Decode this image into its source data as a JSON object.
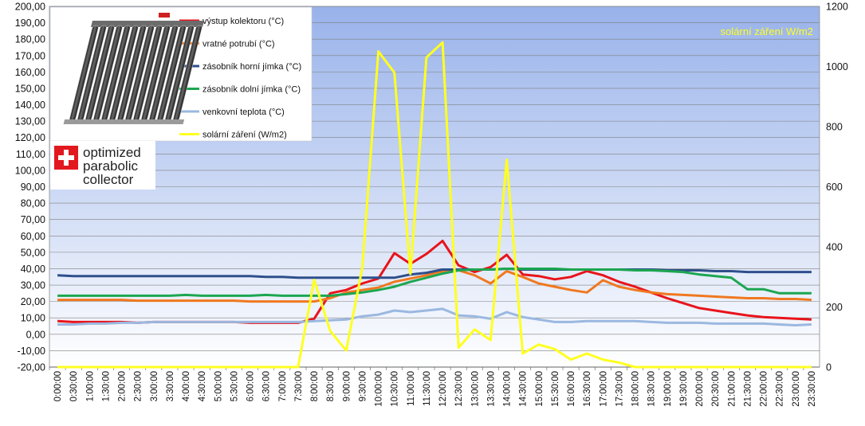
{
  "chart_data": {
    "type": "line",
    "x": [
      "0:00:00",
      "0:30:00",
      "1:00:00",
      "1:30:00",
      "2:00:00",
      "2:30:00",
      "3:00:00",
      "3:30:00",
      "4:00:00",
      "4:30:00",
      "5:00:00",
      "5:30:00",
      "6:00:00",
      "6:30:00",
      "7:00:00",
      "7:30:00",
      "8:00:00",
      "8:30:00",
      "9:00:00",
      "9:30:00",
      "10:00:00",
      "10:30:00",
      "11:00:00",
      "11:30:00",
      "12:00:00",
      "12:30:00",
      "13:00:00",
      "13:30:00",
      "14:00:00",
      "14:30:00",
      "15:00:00",
      "15:30:00",
      "16:00:00",
      "16:30:00",
      "17:00:00",
      "17:30:00",
      "18:00:00",
      "18:30:00",
      "19:00:00",
      "19:30:00",
      "20:00:00",
      "20:30:00",
      "21:00:00",
      "21:30:00",
      "22:00:00",
      "22:30:00",
      "23:00:00",
      "23:30:00"
    ],
    "y_left": {
      "min": -20,
      "max": 200,
      "step": 10
    },
    "y_right": {
      "min": 0,
      "max": 1200,
      "step": 200
    },
    "y_left_ticks": [
      "-20,00",
      "-10,00",
      "0,00",
      "10,00",
      "20,00",
      "30,00",
      "40,00",
      "50,00",
      "60,00",
      "70,00",
      "80,00",
      "90,00",
      "100,00",
      "110,00",
      "120,00",
      "130,00",
      "140,00",
      "150,00",
      "160,00",
      "170,00",
      "180,00",
      "190,00",
      "200,00"
    ],
    "y_right_ticks": [
      "0",
      "200",
      "400",
      "600",
      "800",
      "1000",
      "1200"
    ],
    "grid": true,
    "legend_position": "top-left",
    "annotation": "solární záření W/m2",
    "series": [
      {
        "name": "výstup kolektoru (°C)",
        "color": "#e8141c",
        "axis": "left",
        "values": [
          8,
          7.5,
          7.5,
          7.5,
          7.5,
          7,
          7.5,
          7.5,
          7.5,
          7.5,
          7.5,
          7.5,
          7,
          7,
          7,
          7,
          9.5,
          25,
          27,
          31,
          34,
          49.5,
          43,
          49,
          57,
          42,
          38,
          41,
          48.5,
          36.5,
          35.5,
          33.5,
          35,
          38.5,
          36,
          32,
          29,
          25.5,
          22,
          19,
          16,
          14.5,
          13,
          11.5,
          10.5,
          10,
          9.5,
          9
        ]
      },
      {
        "name": "vratné potrubí (°C)",
        "color": "#f07820",
        "axis": "left",
        "values": [
          21,
          21,
          21,
          21,
          21,
          20.5,
          20.5,
          20.5,
          20.5,
          20.5,
          20.5,
          20.5,
          20,
          20,
          20,
          20,
          20,
          22,
          25.5,
          27,
          28.5,
          32,
          34,
          36,
          38.5,
          39,
          36,
          31,
          38.5,
          35,
          31,
          29,
          27,
          25.5,
          33,
          29,
          27,
          25.5,
          24.5,
          24,
          23.5,
          23,
          22.5,
          22,
          22,
          21.5,
          21.5,
          21
        ]
      },
      {
        "name": "zásobník horní jímka (°C)",
        "color": "#2e4f8c",
        "axis": "left",
        "values": [
          36,
          35.5,
          35.5,
          35.5,
          35.5,
          35.5,
          35.5,
          35.5,
          35.5,
          35.5,
          35.5,
          35.5,
          35.5,
          35,
          35,
          34.5,
          34.5,
          34.5,
          34.5,
          34.5,
          34.5,
          34.5,
          36.5,
          37.5,
          39.5,
          39.5,
          39.5,
          39.5,
          40,
          39.5,
          39.5,
          39.5,
          39.5,
          39.5,
          39.5,
          39.5,
          39.5,
          39.5,
          39,
          39,
          39,
          38.5,
          38.5,
          38,
          38,
          38,
          38,
          38
        ]
      },
      {
        "name": "zásobník dolní jímka (°C)",
        "color": "#1ca650",
        "axis": "left",
        "values": [
          23.5,
          23.5,
          23.5,
          23.5,
          23.5,
          23.5,
          23.5,
          23.5,
          24,
          23.5,
          23.5,
          23.5,
          23.5,
          24,
          23.5,
          23.5,
          23.5,
          23.5,
          24.5,
          25.5,
          27,
          29,
          32,
          34.5,
          37,
          39,
          39.5,
          39.5,
          40,
          40,
          40,
          40,
          39.5,
          39.5,
          39.5,
          39.5,
          39,
          39,
          38.5,
          38,
          36.5,
          35.5,
          34.5,
          27.5,
          27.5,
          25,
          25,
          25
        ]
      },
      {
        "name": "venkovní teplota (°C)",
        "color": "#9ab8e0",
        "axis": "left",
        "values": [
          6,
          6,
          6.5,
          6.5,
          7,
          7,
          7.5,
          7.5,
          7.5,
          7.5,
          7.5,
          7.5,
          7.5,
          7.5,
          7.5,
          7.5,
          8,
          8.5,
          9,
          11,
          12,
          14.5,
          13.5,
          14.5,
          15.5,
          11.5,
          11,
          9.5,
          13.5,
          10.5,
          9,
          7.5,
          7.5,
          8,
          8,
          8,
          8,
          7.5,
          7,
          7,
          7,
          6.5,
          6.5,
          6.5,
          6.5,
          6,
          5.5,
          6
        ]
      },
      {
        "name": "solární záření (W/m2)",
        "color": "#ffff20",
        "axis": "right",
        "values": [
          0,
          0,
          0,
          0,
          0,
          0,
          0,
          0,
          0,
          0,
          0,
          0,
          0,
          0,
          0,
          0,
          290,
          120,
          55,
          330,
          1050,
          980,
          310,
          1030,
          1080,
          65,
          125,
          90,
          690,
          45,
          75,
          60,
          25,
          45,
          25,
          15,
          0,
          0,
          0,
          0,
          0,
          0,
          0,
          0,
          0,
          0,
          0,
          0
        ]
      }
    ]
  },
  "logo": {
    "line1": "optimized",
    "line2": "parabolic",
    "line3": "collector"
  }
}
